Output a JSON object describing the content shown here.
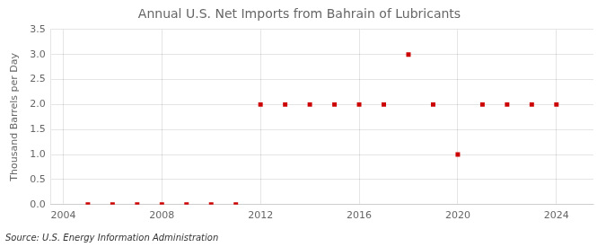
{
  "chart_data": {
    "type": "scatter",
    "title": "Annual U.S. Net Imports from Bahrain of Lubricants",
    "ylabel": "Thousand Barrels per Day",
    "source": "Source: U.S. Energy Information Administration",
    "x": [
      2005,
      2006,
      2007,
      2008,
      2009,
      2010,
      2011,
      2012,
      2013,
      2014,
      2015,
      2016,
      2017,
      2018,
      2019,
      2020,
      2021,
      2022,
      2023,
      2024
    ],
    "values": [
      0,
      0,
      0,
      0,
      0,
      0,
      0,
      2,
      2,
      2,
      2,
      2,
      2,
      3,
      2,
      1,
      2,
      2,
      2,
      2
    ],
    "color": "#cc0000",
    "marker": "square",
    "xlim": [
      2003.5,
      2025.5
    ],
    "xticks": [
      2004,
      2008,
      2012,
      2016,
      2020,
      2024
    ],
    "ylim": [
      0,
      3.5
    ],
    "yticks": [
      {
        "value": 0,
        "label": "0.0"
      },
      0.5,
      {
        "value": 1,
        "label": "1.0"
      },
      1.5,
      {
        "value": 2,
        "label": "2.0"
      },
      2.5,
      {
        "value": 3,
        "label": "3.0"
      },
      3.5
    ],
    "grid": true
  }
}
